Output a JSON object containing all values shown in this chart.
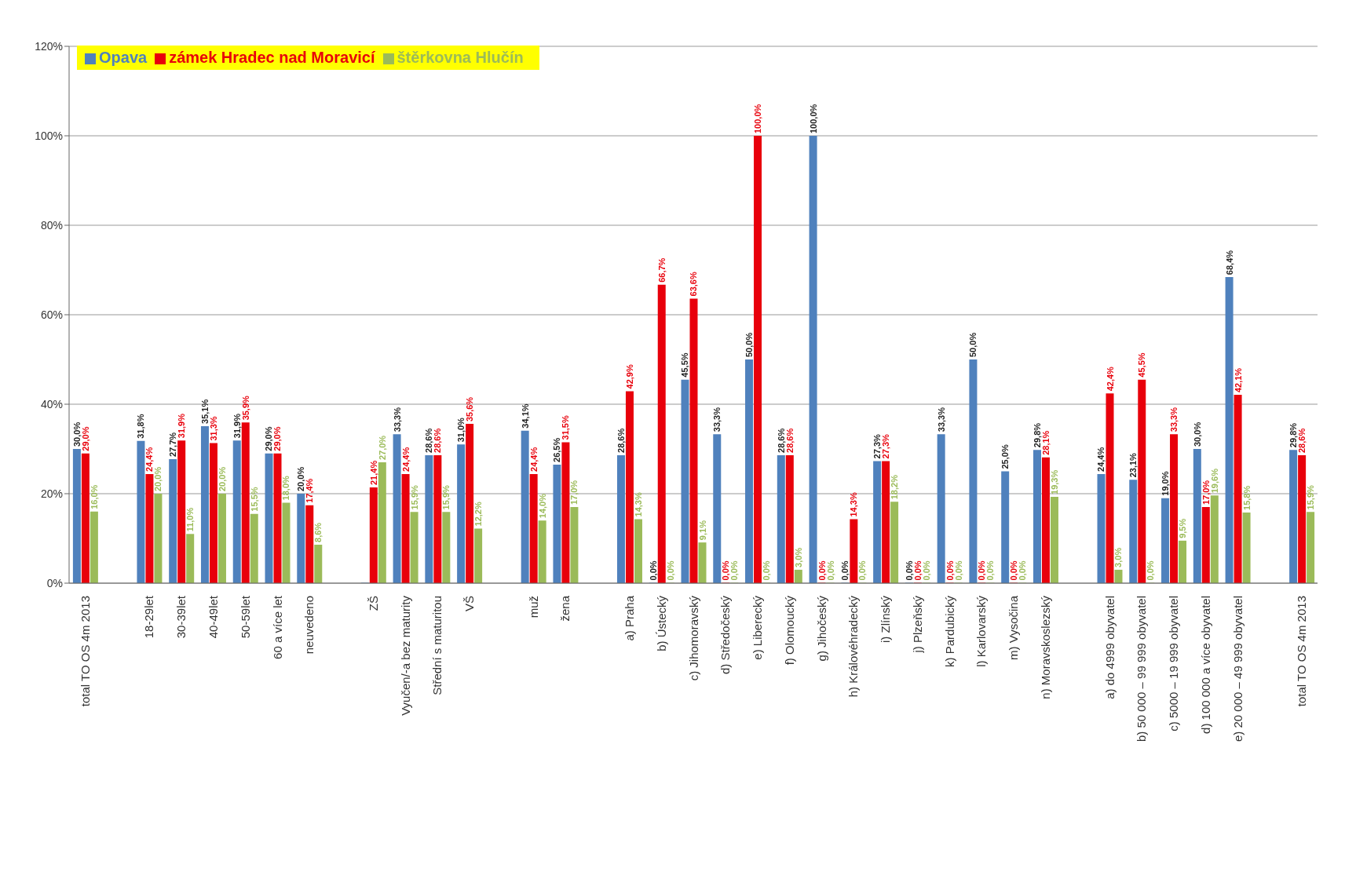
{
  "chart_data": {
    "type": "bar",
    "categories": [
      "total TO OS 4m 2013",
      null,
      "18-29let",
      "30-39let",
      "40-49let",
      "50-59let",
      "60 a více let",
      "neuvedeno",
      null,
      "ZŠ",
      "Vyučen/-a bez maturity",
      "Střední s maturitou",
      "VŠ",
      null,
      "muž",
      "žena",
      null,
      "a)   Praha",
      "b)   Ústecký",
      "c)   Jihomoravský",
      "d)   Středočeský",
      "e)   Liberecký",
      "f)   Olomoucký",
      "g)   Jihočeský",
      "h)   Královéhradecký",
      "i)   Zlínský",
      "j)   Plzeňský",
      "k)   Pardubický",
      "l)   Karlovarský",
      "m) Vysočina",
      "n) Moravskoslezský",
      null,
      "a)   do 4999 obyvatel",
      "b)   50 000 – 99 999 obyvatel",
      "c)   5000 – 19 999 obyvatel",
      "d)   100 000 a více obyvatel",
      "e)   20 000 – 49 999 obyvatel",
      null,
      "total TO OS 4m 2013"
    ],
    "series": [
      {
        "name": "Opava",
        "color": "#4f81bd",
        "values": [
          30.0,
          null,
          31.8,
          27.7,
          35.1,
          31.9,
          29.0,
          20.0,
          null,
          0,
          33.3,
          28.6,
          31.0,
          null,
          34.1,
          26.5,
          null,
          28.6,
          0,
          45.5,
          33.3,
          50.0,
          28.6,
          100,
          0,
          27.3,
          0,
          33.3,
          50.0,
          25.0,
          29.8,
          null,
          24.4,
          23.1,
          19.0,
          30.0,
          68.4,
          null,
          29.8
        ],
        "value_labels": [
          "30,0%",
          null,
          "31,8%",
          "27,7%",
          "35,1%",
          "31,9%",
          "29,0%",
          "20,0%",
          null,
          null,
          "33,3%",
          "28,6%",
          "31,0%",
          null,
          "34,1%",
          "26,5%",
          null,
          "28,6%",
          "0,0%",
          "45,5%",
          "33,3%",
          "50,0%",
          "28,6%",
          "100,0%",
          "0,0%",
          "27,3%",
          "0,0%",
          "33,3%",
          "50,0%",
          "25,0%",
          "29,8%",
          null,
          "24,4%",
          "23,1%",
          "19,0%",
          "30,0%",
          "68,4%",
          null,
          "29,8%"
        ]
      },
      {
        "name": "zámek Hradec nad Moravicí",
        "color": "#e8000b",
        "values": [
          29.0,
          null,
          24.4,
          31.9,
          31.3,
          35.9,
          29.0,
          17.4,
          null,
          21.4,
          24.4,
          28.6,
          35.6,
          null,
          24.4,
          31.5,
          null,
          42.9,
          66.7,
          63.6,
          0,
          100,
          28.6,
          0,
          14.3,
          27.3,
          0,
          0,
          0,
          0,
          28.1,
          null,
          42.4,
          45.5,
          33.3,
          17.0,
          42.1,
          null,
          28.6
        ],
        "value_labels": [
          "29,0%",
          null,
          "24,4%",
          "31,9%",
          "31,3%",
          "35,9%",
          "29,0%",
          "17,4%",
          null,
          "21,4%",
          "24,4%",
          "28,6%",
          "35,6%",
          null,
          "24,4%",
          "31,5%",
          null,
          "42,9%",
          "66,7%",
          "63,6%",
          "0,0%",
          "100,0%",
          "28,6%",
          "0,0%",
          "14,3%",
          "27,3%",
          "0,0%",
          "0,0%",
          "0,0%",
          "0,0%",
          "28,1%",
          null,
          "42,4%",
          "45,5%",
          "33,3%",
          "17,0%",
          "42,1%",
          null,
          "28,6%"
        ]
      },
      {
        "name": "štěrkovna Hlučín",
        "color": "#9bbb59",
        "values": [
          16.0,
          null,
          20.0,
          11.0,
          20.0,
          15.5,
          18.0,
          8.6,
          null,
          27.0,
          15.9,
          15.9,
          12.2,
          null,
          14.0,
          17.0,
          null,
          14.3,
          0,
          9.1,
          0,
          0,
          3.0,
          0,
          0,
          18.2,
          0,
          0,
          0,
          0,
          19.3,
          null,
          3.0,
          0,
          9.5,
          19.6,
          15.8,
          null,
          15.9
        ],
        "value_labels": [
          "16,0%",
          null,
          "20,0%",
          "11,0%",
          "20,0%",
          "15,5%",
          "18,0%",
          "8,6%",
          null,
          "27,0%",
          "15,9%",
          "15,9%",
          "12,2%",
          null,
          "14,0%",
          "17,0%",
          null,
          "14,3%",
          "0,0%",
          "9,1%",
          "0,0%",
          "0,0%",
          "3,0%",
          "0,0%",
          "0,0%",
          "18,2%",
          "0,0%",
          "0,0%",
          "0,0%",
          "0,0%",
          "19,3%",
          null,
          "3,0%",
          "0,0%",
          "9,5%",
          "19,6%",
          "15,8%",
          null,
          "15,9%"
        ]
      }
    ],
    "ylim": [
      0,
      120
    ],
    "yticks": [
      {
        "value": 0,
        "label": "0%"
      },
      {
        "value": 20,
        "label": "20%"
      },
      {
        "value": 40,
        "label": "40%"
      },
      {
        "value": 60,
        "label": "60%"
      },
      {
        "value": 80,
        "label": "80%"
      },
      {
        "value": 100,
        "label": "100%"
      },
      {
        "value": 120,
        "label": "120%"
      }
    ],
    "grid": "y",
    "legend": "top left"
  }
}
